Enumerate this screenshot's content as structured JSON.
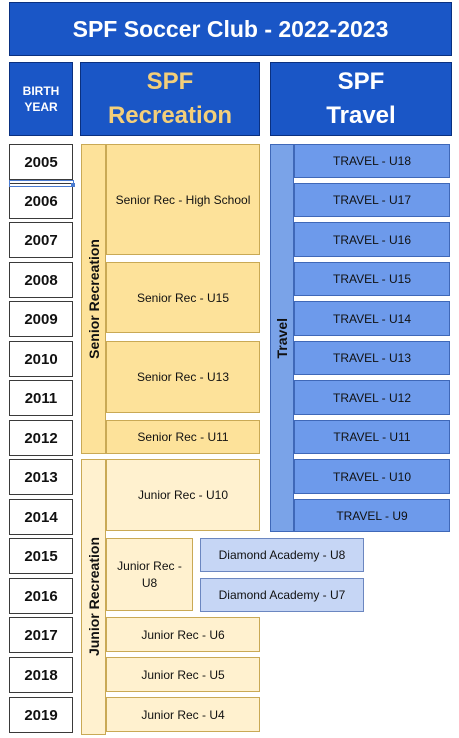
{
  "title": "SPF Soccer Club - 2022-2023",
  "headers": {
    "birth_line1": "BIRTH",
    "birth_line2": "YEAR",
    "rec_line1": "SPF",
    "rec_line2": "Recreation",
    "travel_line1": "SPF",
    "travel_line2": "Travel"
  },
  "years": [
    "2005",
    "2006",
    "2007",
    "2008",
    "2009",
    "2010",
    "2011",
    "2012",
    "2013",
    "2014",
    "2015",
    "2016",
    "2017",
    "2018",
    "2019"
  ],
  "groups": {
    "senior_label": "Senior Recreation",
    "junior_label": "Junior Recreation",
    "travel_label": "Travel"
  },
  "recreation": {
    "senior_high_school": "Senior Rec - High School",
    "senior_u15": "Senior Rec - U15",
    "senior_u13": "Senior Rec - U13",
    "senior_u11": "Senior Rec - U11",
    "junior_u10": "Junior Rec - U10",
    "junior_u8": "Junior Rec - U8",
    "junior_u6": "Junior Rec - U6",
    "junior_u5": "Junior Rec - U5",
    "junior_u4": "Junior Rec - U4"
  },
  "travel": [
    "TRAVEL - U18",
    "TRAVEL - U17",
    "TRAVEL - U16",
    "TRAVEL - U15",
    "TRAVEL - U14",
    "TRAVEL - U13",
    "TRAVEL - U12",
    "TRAVEL - U11",
    "TRAVEL - U10",
    "TRAVEL - U9"
  ],
  "diamond": {
    "u8": "Diamond Academy - U8",
    "u7": "Diamond Academy - U7"
  },
  "colors": {
    "header_blue": "#1a56c6",
    "recreation_header_text": "#f3cf7a",
    "senior_fill": "#fde29a",
    "junior_fill": "#fff1cf",
    "travel_fill": "#6d9aeb",
    "diamond_fill": "#c6d6f5"
  }
}
